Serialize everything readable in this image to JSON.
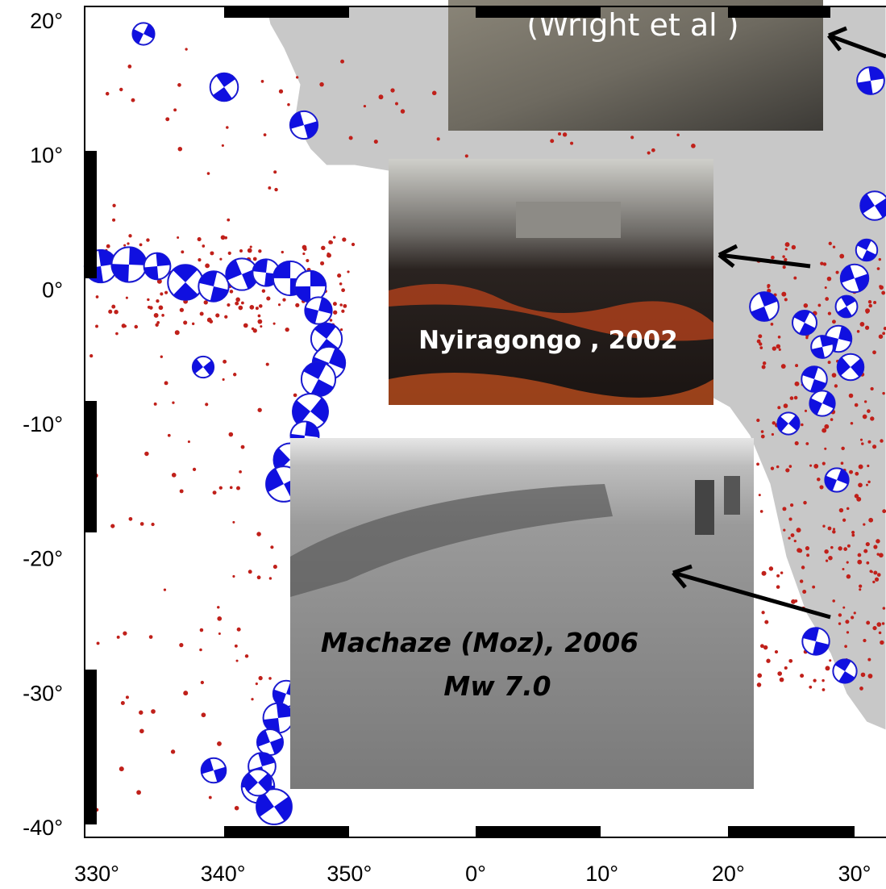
{
  "map": {
    "lat_labels": [
      "20°",
      "10°",
      "0°",
      "-10°",
      "-20°",
      "-30°",
      "-40°"
    ],
    "lon_labels": [
      "330°",
      "340°",
      "350°",
      "0°",
      "10°",
      "20°",
      "30°"
    ]
  },
  "photos": [
    {
      "caption": "(Wright et al )"
    },
    {
      "caption": "Nyiragongo , 2002"
    },
    {
      "caption_lines": [
        "Machaze (Moz), 2006",
        "Mw 7.0"
      ]
    }
  ]
}
